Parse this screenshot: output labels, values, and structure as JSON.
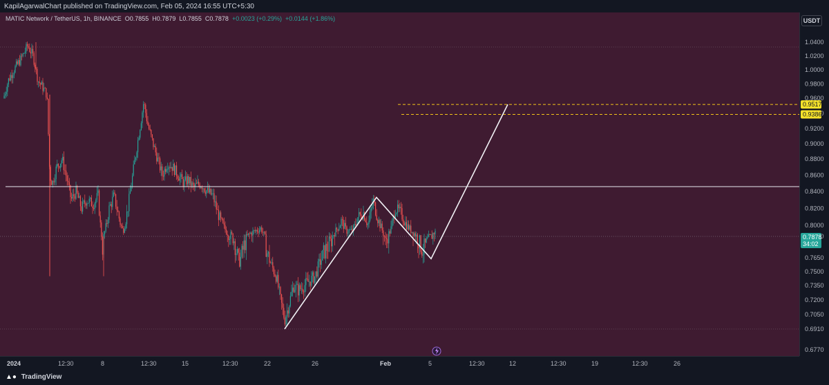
{
  "header": {
    "published": "KapilAgarwalChart published on TradingView.com, Feb 05, 2024 16:55 UTC+5:30"
  },
  "symbol": {
    "name": "MATIC Network / TetherUS, 1h, BINANCE",
    "o_label": "O",
    "o": "0.7855",
    "h_label": "H",
    "h": "0.7879",
    "l_label": "L",
    "l": "0.7855",
    "c_label": "C",
    "c": "0.7878",
    "change": "+0.0023 (+0.29%)",
    "change2": "+0.0144 (+1.86%)"
  },
  "currency": "USDT",
  "footer": {
    "brand": "TradingView"
  },
  "colors": {
    "background": "#3f1b31",
    "up": "#26a69a",
    "down": "#ef5350",
    "level_label": "#f5e22a",
    "last_label": "#26a69a"
  },
  "chart_data": {
    "type": "candlestick",
    "interval": "1h",
    "ylim": [
      0.67,
      1.055
    ],
    "y_ticks": [
      "1.0400",
      "1.0200",
      "1.0000",
      "0.9800",
      "0.9600",
      "0.9400",
      "0.9200",
      "0.9000",
      "0.8800",
      "0.8600",
      "0.8400",
      "0.8200",
      "0.8000",
      "0.7800",
      "0.7650",
      "0.7500",
      "0.7350",
      "0.7200",
      "0.7050",
      "0.6910",
      "0.6770"
    ],
    "x_ticks": [
      "2024",
      "12:30",
      "8",
      "12:30",
      "15",
      "12:30",
      "22",
      "26",
      "Feb",
      "5",
      "12:30",
      "12",
      "12:30",
      "19",
      "12:30",
      "26"
    ],
    "bold_x_ticks": [
      "2024",
      "Feb"
    ],
    "price_path": [
      [
        0,
        0.98
      ],
      [
        5,
        0.96
      ],
      [
        12,
        0.985
      ],
      [
        20,
        1.0
      ],
      [
        30,
        1.015
      ],
      [
        40,
        1.035
      ],
      [
        48,
        1.02
      ],
      [
        55,
        0.985
      ],
      [
        62,
        0.975
      ],
      [
        68,
        0.965
      ],
      [
        72,
        0.86
      ],
      [
        76,
        0.85
      ],
      [
        82,
        0.87
      ],
      [
        90,
        0.88
      ],
      [
        97,
        0.855
      ],
      [
        103,
        0.83
      ],
      [
        110,
        0.84
      ],
      [
        118,
        0.82
      ],
      [
        125,
        0.83
      ],
      [
        135,
        0.825
      ],
      [
        142,
        0.835
      ],
      [
        148,
        0.77
      ],
      [
        152,
        0.79
      ],
      [
        158,
        0.82
      ],
      [
        165,
        0.835
      ],
      [
        172,
        0.81
      ],
      [
        178,
        0.79
      ],
      [
        185,
        0.82
      ],
      [
        192,
        0.86
      ],
      [
        198,
        0.895
      ],
      [
        204,
        0.93
      ],
      [
        208,
        0.955
      ],
      [
        214,
        0.925
      ],
      [
        220,
        0.905
      ],
      [
        228,
        0.88
      ],
      [
        235,
        0.86
      ],
      [
        242,
        0.875
      ],
      [
        250,
        0.87
      ],
      [
        258,
        0.86
      ],
      [
        266,
        0.85
      ],
      [
        272,
        0.855
      ],
      [
        280,
        0.845
      ],
      [
        290,
        0.85
      ],
      [
        300,
        0.84
      ],
      [
        308,
        0.835
      ],
      [
        315,
        0.815
      ],
      [
        322,
        0.8
      ],
      [
        330,
        0.785
      ],
      [
        338,
        0.78
      ],
      [
        346,
        0.76
      ],
      [
        354,
        0.775
      ],
      [
        362,
        0.785
      ],
      [
        370,
        0.79
      ],
      [
        378,
        0.795
      ],
      [
        386,
        0.77
      ],
      [
        394,
        0.755
      ],
      [
        400,
        0.745
      ],
      [
        406,
        0.72
      ],
      [
        412,
        0.7
      ],
      [
        418,
        0.715
      ],
      [
        425,
        0.735
      ],
      [
        432,
        0.73
      ],
      [
        440,
        0.735
      ],
      [
        448,
        0.74
      ],
      [
        456,
        0.745
      ],
      [
        463,
        0.76
      ],
      [
        470,
        0.77
      ],
      [
        478,
        0.775
      ],
      [
        486,
        0.79
      ],
      [
        494,
        0.805
      ],
      [
        502,
        0.79
      ],
      [
        510,
        0.79
      ],
      [
        518,
        0.81
      ],
      [
        526,
        0.815
      ],
      [
        533,
        0.8
      ],
      [
        540,
        0.83
      ],
      [
        546,
        0.81
      ],
      [
        552,
        0.795
      ],
      [
        558,
        0.775
      ],
      [
        565,
        0.79
      ],
      [
        572,
        0.82
      ],
      [
        580,
        0.815
      ],
      [
        588,
        0.8
      ],
      [
        596,
        0.79
      ],
      [
        604,
        0.78
      ],
      [
        612,
        0.77
      ],
      [
        618,
        0.775
      ],
      [
        624,
        0.78
      ],
      [
        628,
        0.787
      ],
      [
        631,
        0.7878
      ]
    ],
    "drawings": {
      "horizontal_levels": [
        "0.9517",
        "0.9386"
      ],
      "horizontal_line": 0.846,
      "pattern_points": [
        [
          412,
          0.691
        ],
        [
          545,
          0.833
        ],
        [
          624,
          0.764
        ],
        [
          735,
          0.9517
        ]
      ]
    },
    "last_price": "0.7878",
    "countdown": "34:02",
    "level_labels": [
      "0.9517",
      "0.9386"
    ]
  }
}
